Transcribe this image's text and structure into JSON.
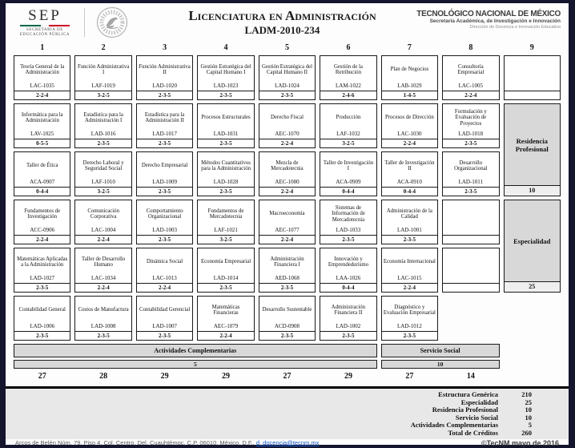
{
  "header": {
    "sep": {
      "acronym": "SEP",
      "sub1": "SECRETARÍA DE",
      "sub2": "EDUCACIÓN PÚBLICA"
    },
    "title": "Licenciatura en Administración",
    "subtitle": "LADM-2010-234",
    "right": {
      "line1": "TECNOLÓGICO NACIONAL DE MÉXICO",
      "line2": "Secretaría Académica, de Investigación e Innovación",
      "line3": "Dirección de Docencia e Innovación Educativa"
    }
  },
  "columns": [
    "1",
    "2",
    "3",
    "4",
    "5",
    "6",
    "7",
    "8",
    "9"
  ],
  "grid": {
    "rows": [
      {
        "cells": [
          {
            "type": "c",
            "name": "Teoría General de la Administración",
            "code": "LAC-1035",
            "credits": "2-2-4"
          },
          {
            "type": "c",
            "name": "Función Administrativa I",
            "code": "LAF-1019",
            "credits": "3-2-5"
          },
          {
            "type": "c",
            "name": "Función Administrativa II",
            "code": "LAD-1020",
            "credits": "2-3-5"
          },
          {
            "type": "c",
            "name": "Gestión Estratégica del Capital Humano I",
            "code": "LAD-1023",
            "credits": "2-3-5"
          },
          {
            "type": "c",
            "name": "Gestión Estratégica del Capital Humano II",
            "code": "LAD-1024",
            "credits": "2-3-5"
          },
          {
            "type": "c",
            "name": "Gestión de la Retribución",
            "code": "LAM-1022",
            "credits": "2-4-6"
          },
          {
            "type": "c",
            "name": "Plan de Negocios",
            "code": "LAB-1029",
            "credits": "1-4-5"
          },
          {
            "type": "c",
            "name": "Consultoría Empresarial",
            "code": "LAC-1005",
            "credits": "2-2-4"
          },
          {
            "type": "e"
          }
        ]
      },
      {
        "cells": [
          {
            "type": "c",
            "name": "Informática para la Administración",
            "code": "LAV-1025",
            "credits": "0-5-5"
          },
          {
            "type": "c",
            "name": "Estadística para la Administración I",
            "code": "LAD-1016",
            "credits": "2-3-5"
          },
          {
            "type": "c",
            "name": "Estadística para la Administración II",
            "code": "LAD-1017",
            "credits": "2-3-5"
          },
          {
            "type": "c",
            "name": "Procesos Estructurales",
            "code": "LAD-1031",
            "credits": "2-3-5"
          },
          {
            "type": "c",
            "name": "Derecho Fiscal",
            "code": "AEC-1070",
            "credits": "2-2-4"
          },
          {
            "type": "c",
            "name": "Producción",
            "code": "LAF-1032",
            "credits": "3-2-5"
          },
          {
            "type": "c",
            "name": "Procesos de Dirección",
            "code": "LAC-1030",
            "credits": "2-2-4"
          },
          {
            "type": "c",
            "name": "Formulación y Evaluación de Proyectos",
            "code": "LAD-1018",
            "credits": "2-3-5"
          },
          null
        ]
      },
      {
        "cells": [
          {
            "type": "c",
            "name": "Taller de Ética",
            "code": "ACA-0907",
            "credits": "0-4-4"
          },
          {
            "type": "c",
            "name": "Derecho Laboral y Seguridad Social",
            "code": "LAF-1010",
            "credits": "3-2-5"
          },
          {
            "type": "c",
            "name": "Derecho Empresarial",
            "code": "LAD-1009",
            "credits": "2-3-5"
          },
          {
            "type": "c",
            "name": "Métodos Cuantitativos para la Administración",
            "code": "LAD-1028",
            "credits": "2-3-5"
          },
          {
            "type": "c",
            "name": "Mezcla de Mercadotecnia",
            "code": "AEC-1080",
            "credits": "2-2-4"
          },
          {
            "type": "c",
            "name": "Taller de Investigación I",
            "code": "ACA-0909",
            "credits": "0-4-4"
          },
          {
            "type": "c",
            "name": "Taller de Investigación II",
            "code": "ACA-0910",
            "credits": "0-4-4"
          },
          {
            "type": "c",
            "name": "Desarrollo Organizacional",
            "code": "LAD-1011",
            "credits": "2-3-5"
          },
          null
        ]
      },
      {
        "cells": [
          {
            "type": "c",
            "name": "Fundamentos de Investigación",
            "code": "ACC-0906",
            "credits": "2-2-4"
          },
          {
            "type": "c",
            "name": "Comunicación Corporativa",
            "code": "LAC-1004",
            "credits": "2-2-4"
          },
          {
            "type": "c",
            "name": "Comportamiento Organizacional",
            "code": "LAD-1003",
            "credits": "2-3-5"
          },
          {
            "type": "c",
            "name": "Fundamentos de Mercadotecnia",
            "code": "LAF-1021",
            "credits": "3-2-5"
          },
          {
            "type": "c",
            "name": "Macroeconomía",
            "code": "AEC-1077",
            "credits": "2-2-4"
          },
          {
            "type": "c",
            "name": "Sistemas de Información de Mercadotecnia",
            "code": "LAD-1033",
            "credits": "2-3-5"
          },
          {
            "type": "c",
            "name": "Administración de la Calidad",
            "code": "LAD-1001",
            "credits": "2-3-5"
          },
          {
            "type": "e"
          },
          null
        ]
      },
      {
        "cells": [
          {
            "type": "c",
            "name": "Matemáticas Aplicadas a la Administración",
            "code": "LAD-1027",
            "credits": "2-3-5"
          },
          {
            "type": "c",
            "name": "Taller de Desarrollo Humano",
            "code": "LAC-1034",
            "credits": "2-2-4"
          },
          {
            "type": "c",
            "name": "Dinámica Social",
            "code": "LAC-1013",
            "credits": "2-2-4"
          },
          {
            "type": "c",
            "name": "Economía Empresarial",
            "code": "LAD-1014",
            "credits": "2-3-5"
          },
          {
            "type": "c",
            "name": "Administración Financiera I",
            "code": "AED-1068",
            "credits": "2-3-5"
          },
          {
            "type": "c",
            "name": "Innovación y Emprendedurismo",
            "code": "LAA-1026",
            "credits": "0-4-4"
          },
          {
            "type": "c",
            "name": "Economía Internacional",
            "code": "LAC-1015",
            "credits": "2-2-4"
          },
          {
            "type": "e"
          },
          null
        ]
      },
      {
        "cells": [
          {
            "type": "c",
            "name": "Contabilidad General",
            "code": "LAD-1006",
            "credits": "2-3-5"
          },
          {
            "type": "c",
            "name": "Costos de Manufactura",
            "code": "LAD-1008",
            "credits": "2-3-5"
          },
          {
            "type": "c",
            "name": "Contabilidad Gerencial",
            "code": "LAD-1007",
            "credits": "2-3-5"
          },
          {
            "type": "c",
            "name": "Matemáticas Financieras",
            "code": "AEC-1079",
            "credits": "2-2-4"
          },
          {
            "type": "c",
            "name": "Desarrollo Sustentable",
            "code": "ACD-0908",
            "credits": "2-3-5"
          },
          {
            "type": "c",
            "name": "Administración Financiera II",
            "code": "LAD-1002",
            "credits": "2-3-5"
          },
          {
            "type": "c",
            "name": "Diagnóstico y Evaluación Empresarial",
            "code": "LAD-1012",
            "credits": "2-3-5"
          },
          null,
          null
        ]
      }
    ]
  },
  "special_blocks": [
    {
      "label": "Residencia Profesional",
      "credits": "10",
      "col": 9,
      "row_start": 2,
      "row_span": 2
    },
    {
      "label": "Especialidad",
      "credits": "25",
      "col": 9,
      "row_start": 4,
      "row_span": 2
    }
  ],
  "bands": [
    {
      "label": "Actividades Complementarias",
      "credits": "5",
      "col_start": 1,
      "col_span": 6
    },
    {
      "label": "Servicio Social",
      "credits": "10",
      "col_start": 7,
      "col_span": 2
    }
  ],
  "column_totals": [
    "27",
    "28",
    "29",
    "29",
    "27",
    "29",
    "27",
    "14"
  ],
  "summary": {
    "rows": [
      {
        "label": "Estructura Genérica",
        "value": "210"
      },
      {
        "label": "Especialidad",
        "value": "25"
      },
      {
        "label": "Residencia Profesional",
        "value": "10"
      },
      {
        "label": "Servicio Social",
        "value": "10"
      },
      {
        "label": "Actividades Complementarias",
        "value": "5"
      },
      {
        "label": "Total de Créditos",
        "value": "260"
      }
    ]
  },
  "footer": {
    "address": "Arcos de Belén Núm. 79, Piso 4, Col. Centro, Del. Cuauhtémoc, C.P. 06010, México, D.F., ",
    "email": "d_docencia@tecnm.mx",
    "copyright": "©TecNM mayo de 2016"
  },
  "colors": {
    "accent_gray": "#d8d8d8",
    "flag_green": "#006847",
    "flag_red": "#ce1126",
    "link_blue": "#1155cc"
  }
}
